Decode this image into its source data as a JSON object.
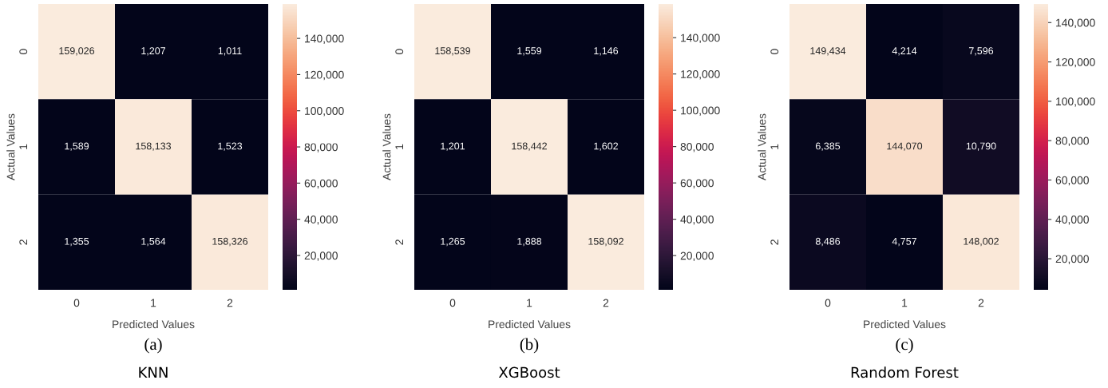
{
  "chart_data": [
    {
      "type": "heatmap",
      "xlabel": "Predicted Values",
      "ylabel": "Actual Values",
      "categories": [
        "0",
        "1",
        "2"
      ],
      "y_categories": [
        "0",
        "1",
        "2"
      ],
      "cells": [
        [
          159026,
          1207,
          1011
        ],
        [
          1589,
          158133,
          1523
        ],
        [
          1355,
          1564,
          158326
        ]
      ],
      "cell_labels": [
        [
          "159,026",
          "1,207",
          "1,011"
        ],
        [
          "1,589",
          "158,133",
          "1,523"
        ],
        [
          "1,355",
          "1,564",
          "158,326"
        ]
      ],
      "clim": [
        1011,
        159026
      ],
      "cticks": [
        {
          "value": 20000,
          "label": "20,000"
        },
        {
          "value": 40000,
          "label": "40,000"
        },
        {
          "value": 60000,
          "label": "60,000"
        },
        {
          "value": 80000,
          "label": "80,000"
        },
        {
          "value": 100000,
          "label": "100,000"
        },
        {
          "value": 120000,
          "label": "120,000"
        },
        {
          "value": 140000,
          "label": "140,000"
        }
      ],
      "annotations": [
        "(a)",
        "KNN"
      ]
    },
    {
      "type": "heatmap",
      "xlabel": "Predicted Values",
      "ylabel": "Actual Values",
      "categories": [
        "0",
        "1",
        "2"
      ],
      "y_categories": [
        "0",
        "1",
        "2"
      ],
      "cells": [
        [
          158539,
          1559,
          1146
        ],
        [
          1201,
          158442,
          1602
        ],
        [
          1265,
          1888,
          158092
        ]
      ],
      "cell_labels": [
        [
          "158,539",
          "1,559",
          "1,146"
        ],
        [
          "1,201",
          "158,442",
          "1,602"
        ],
        [
          "1,265",
          "1,888",
          "158,092"
        ]
      ],
      "clim": [
        1146,
        158539
      ],
      "cticks": [
        {
          "value": 20000,
          "label": "20,000"
        },
        {
          "value": 40000,
          "label": "40,000"
        },
        {
          "value": 60000,
          "label": "60,000"
        },
        {
          "value": 80000,
          "label": "80,000"
        },
        {
          "value": 100000,
          "label": "100,000"
        },
        {
          "value": 120000,
          "label": "120,000"
        },
        {
          "value": 140000,
          "label": "140,000"
        }
      ],
      "annotations": [
        "(b)",
        "XGBoost"
      ]
    },
    {
      "type": "heatmap",
      "xlabel": "Predicted Values",
      "ylabel": "Actual Values",
      "categories": [
        "0",
        "1",
        "2"
      ],
      "y_categories": [
        "0",
        "1",
        "2"
      ],
      "cells": [
        [
          149434,
          4214,
          7596
        ],
        [
          6385,
          144070,
          10790
        ],
        [
          8486,
          4757,
          148002
        ]
      ],
      "cell_labels": [
        [
          "149,434",
          "4,214",
          "7,596"
        ],
        [
          "6,385",
          "144,070",
          "10,790"
        ],
        [
          "8,486",
          "4,757",
          "148,002"
        ]
      ],
      "clim": [
        4214,
        149434
      ],
      "cticks": [
        {
          "value": 20000,
          "label": "20,000"
        },
        {
          "value": 40000,
          "label": "40,000"
        },
        {
          "value": 60000,
          "label": "60,000"
        },
        {
          "value": 80000,
          "label": "80,000"
        },
        {
          "value": 100000,
          "label": "100,000"
        },
        {
          "value": 120000,
          "label": "120,000"
        },
        {
          "value": 140000,
          "label": "140,000"
        }
      ],
      "annotations": [
        "(c)",
        "Random Forest"
      ]
    }
  ]
}
